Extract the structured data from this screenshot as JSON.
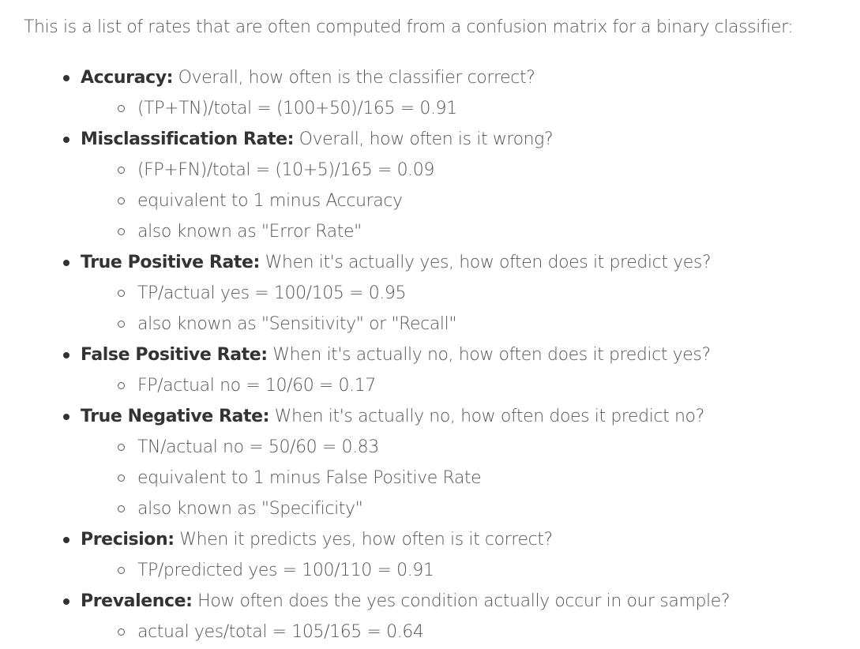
{
  "intro": "This is a list of rates that are often computed from a confusion matrix for a binary classifier:",
  "metrics": [
    {
      "name": "Accuracy:",
      "question": "Overall, how often is the classifier correct?",
      "details": [
        "(TP+TN)/total = (100+50)/165 = 0.91"
      ]
    },
    {
      "name": "Misclassification Rate:",
      "question": "Overall, how often is it wrong?",
      "details": [
        "(FP+FN)/total = (10+5)/165 = 0.09",
        "equivalent to 1 minus Accuracy",
        "also known as \"Error Rate\""
      ]
    },
    {
      "name": "True Positive Rate:",
      "question": "When it's actually yes, how often does it predict yes?",
      "details": [
        "TP/actual yes = 100/105 = 0.95",
        "also known as \"Sensitivity\" or \"Recall\""
      ]
    },
    {
      "name": "False Positive Rate:",
      "question": "When it's actually no, how often does it predict yes?",
      "details": [
        "FP/actual no = 10/60 = 0.17"
      ]
    },
    {
      "name": "True Negative Rate:",
      "question": "When it's actually no, how often does it predict no?",
      "details": [
        "TN/actual no = 50/60 = 0.83",
        "equivalent to 1 minus False Positive Rate",
        "also known as \"Specificity\""
      ]
    },
    {
      "name": "Precision:",
      "question": "When it predicts yes, how often is it correct?",
      "details": [
        "TP/predicted yes = 100/110 = 0.91"
      ]
    },
    {
      "name": "Prevalence:",
      "question": "How often does the yes condition actually occur in our sample?",
      "details": [
        "actual yes/total = 105/165 = 0.64"
      ]
    }
  ]
}
